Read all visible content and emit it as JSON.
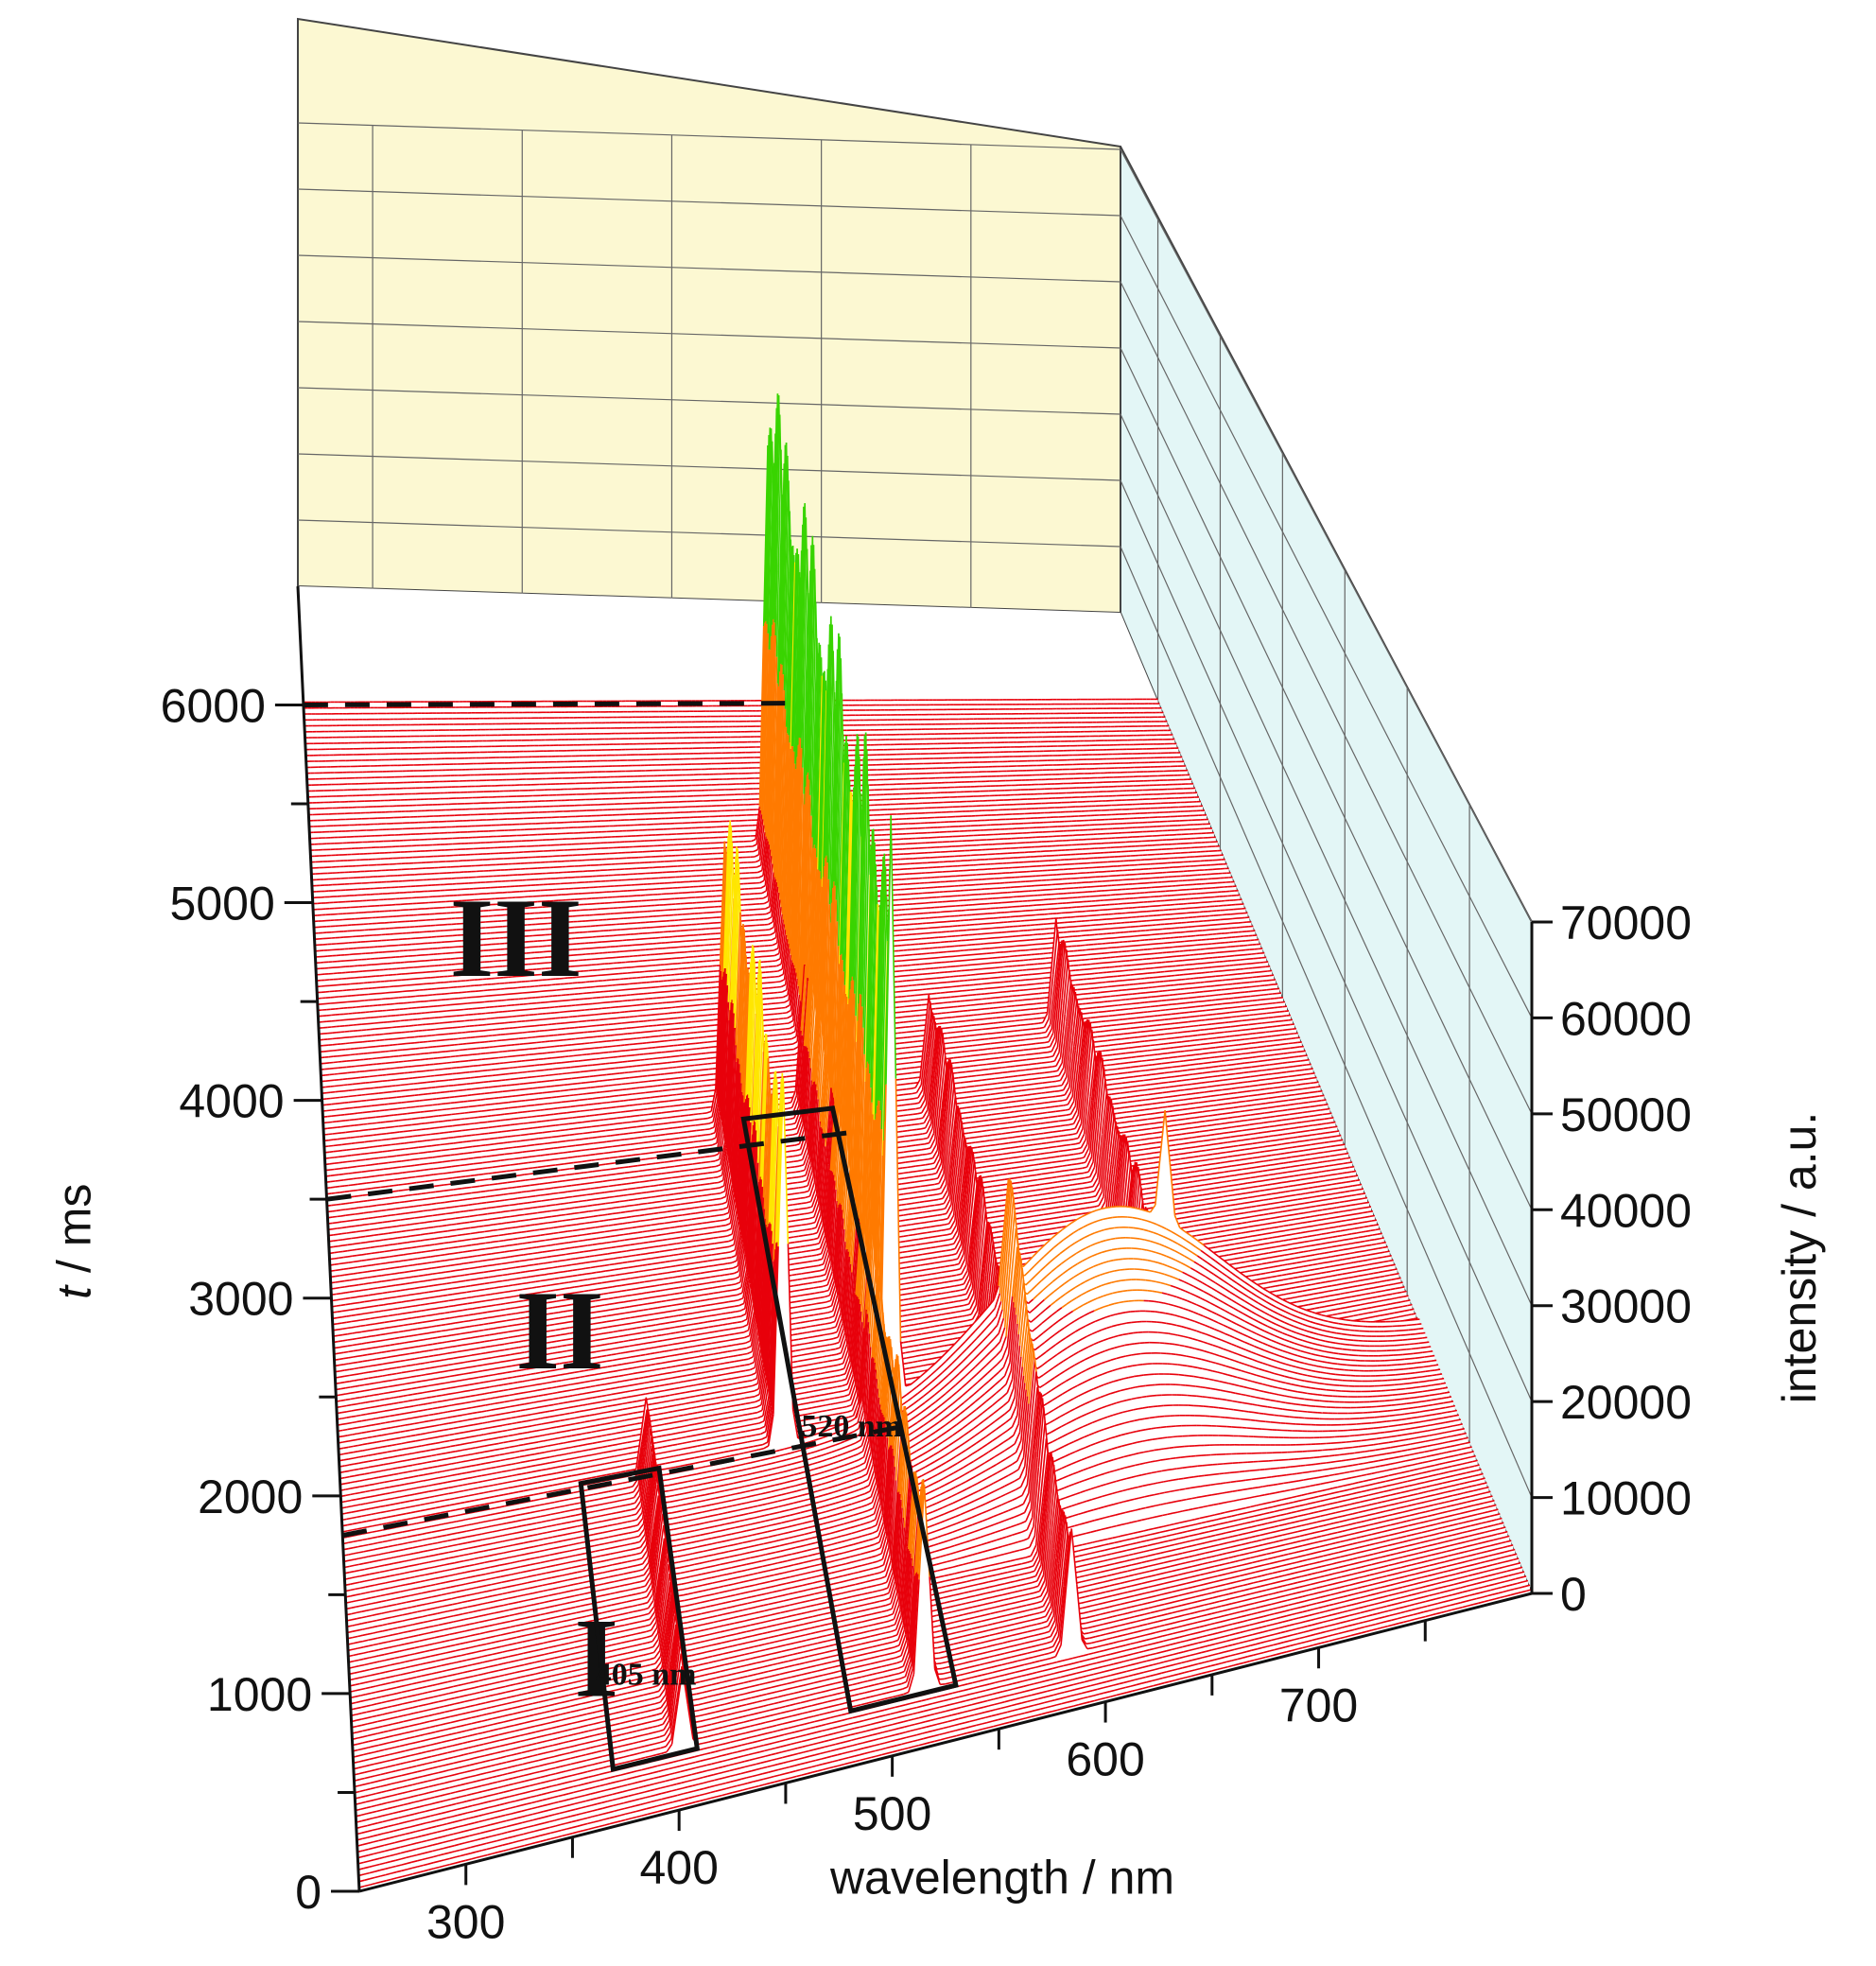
{
  "chart_data": {
    "type": "3d-waterfall",
    "x_axis": {
      "label": "wavelength / nm",
      "ticks": [
        "300",
        "400",
        "500",
        "600",
        "700"
      ],
      "range": [
        250,
        800
      ]
    },
    "y_axis": {
      "label_italic": "t",
      "label_rest": " / ms",
      "ticks": [
        "0",
        "1000",
        "2000",
        "3000",
        "4000",
        "5000",
        "6000"
      ],
      "range": [
        0,
        6600
      ]
    },
    "z_axis": {
      "label": "intensity / a.u.",
      "ticks": [
        "0",
        "10000",
        "20000",
        "30000",
        "40000",
        "50000",
        "60000",
        "70000"
      ],
      "range": [
        0,
        70000
      ]
    },
    "regions": [
      {
        "label": "I",
        "t_range": [
          0,
          1800
        ]
      },
      {
        "label": "II",
        "t_range": [
          1800,
          3500
        ]
      },
      {
        "label": "III",
        "t_range": [
          3500,
          6000
        ]
      }
    ],
    "annotations": [
      "405 nm",
      "520 nm"
    ],
    "peaks": [
      {
        "wavelength": 405,
        "t_range": [
          300,
          1800
        ],
        "max_intensity": 10000
      },
      {
        "wavelength": 475,
        "t_range": [
          1800,
          3700
        ],
        "max_intensity": 42000
      },
      {
        "wavelength": 520,
        "t_range": [
          300,
          3700
        ],
        "max_intensity": 22000
      },
      {
        "wavelength": 530,
        "t_range": [
          1800,
          5200
        ],
        "max_intensity": 68000
      },
      {
        "wavelength": 590,
        "t_range": [
          300,
          3700
        ],
        "max_intensity": 14000
      },
      {
        "wavelength": 670,
        "t_range": [
          1800,
          4000
        ],
        "max_intensity": 14000
      }
    ],
    "broad_band": {
      "center": 640,
      "width": 80,
      "t_range": [
        900,
        1800
      ],
      "max_intensity": 20000
    },
    "colormap": [
      "#e8000b",
      "#ff7a00",
      "#ffe600",
      "#39d400",
      "#00d6d6",
      "#0040ff"
    ],
    "grid": true
  }
}
